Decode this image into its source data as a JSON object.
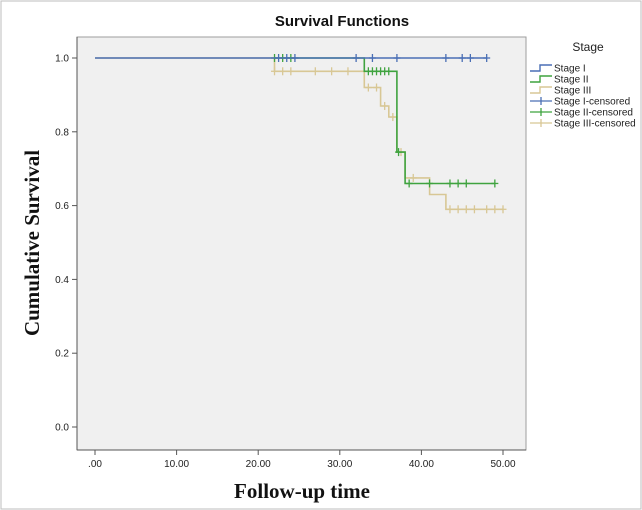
{
  "chart_data": {
    "type": "line",
    "title": "Survival Functions",
    "xlabel": "Follow-up time",
    "ylabel": "Cumulative Survival",
    "xlim": [
      0,
      50
    ],
    "ylim": [
      0,
      1.0
    ],
    "x_ticks": [
      ".00",
      "10.00",
      "20.00",
      "30.00",
      "40.00",
      "50.00"
    ],
    "y_ticks": [
      "0.0",
      "0.2",
      "0.4",
      "0.6",
      "0.8",
      "1.0"
    ],
    "grid": false,
    "legend": {
      "title": "Stage",
      "position": "right",
      "entries": [
        "Stage I",
        "Stage II",
        "Stage III",
        "Stage I-censored",
        "Stage II-censored",
        "Stage III-censored"
      ]
    },
    "series": [
      {
        "name": "Stage I",
        "color": "#4a6fb5",
        "steps": [
          [
            0,
            1.0
          ],
          [
            48,
            1.0
          ]
        ],
        "censored": [
          [
            22.5,
            1.0
          ],
          [
            23.5,
            1.0
          ],
          [
            24.5,
            1.0
          ],
          [
            32,
            1.0
          ],
          [
            34,
            1.0
          ],
          [
            37,
            1.0
          ],
          [
            43,
            1.0
          ],
          [
            45,
            1.0
          ],
          [
            46,
            1.0
          ],
          [
            48,
            1.0
          ]
        ]
      },
      {
        "name": "Stage II",
        "color": "#3fa33f",
        "steps": [
          [
            22,
            1.0
          ],
          [
            33,
            1.0
          ],
          [
            33,
            0.964
          ],
          [
            37,
            0.964
          ],
          [
            37,
            0.745
          ],
          [
            38,
            0.745
          ],
          [
            38,
            0.66
          ],
          [
            49,
            0.66
          ]
        ],
        "censored": [
          [
            22,
            1.0
          ],
          [
            23,
            1.0
          ],
          [
            24,
            1.0
          ],
          [
            33.5,
            0.964
          ],
          [
            34,
            0.964
          ],
          [
            34.5,
            0.964
          ],
          [
            35,
            0.964
          ],
          [
            35.5,
            0.964
          ],
          [
            36,
            0.964
          ],
          [
            37.2,
            0.745
          ],
          [
            38.5,
            0.66
          ],
          [
            41,
            0.66
          ],
          [
            43.5,
            0.66
          ],
          [
            44.5,
            0.66
          ],
          [
            45.5,
            0.66
          ],
          [
            49,
            0.66
          ]
        ]
      },
      {
        "name": "Stage III",
        "color": "#d8c795",
        "steps": [
          [
            0,
            1.0
          ],
          [
            22,
            1.0
          ],
          [
            22,
            0.964
          ],
          [
            33,
            0.964
          ],
          [
            33,
            0.92
          ],
          [
            35,
            0.92
          ],
          [
            35,
            0.87
          ],
          [
            36,
            0.87
          ],
          [
            36,
            0.84
          ],
          [
            37,
            0.84
          ],
          [
            37,
            0.745
          ],
          [
            38,
            0.745
          ],
          [
            38,
            0.675
          ],
          [
            41,
            0.675
          ],
          [
            41,
            0.63
          ],
          [
            43,
            0.63
          ],
          [
            43,
            0.59
          ],
          [
            50,
            0.59
          ]
        ],
        "censored": [
          [
            22,
            0.964
          ],
          [
            23,
            0.964
          ],
          [
            24,
            0.964
          ],
          [
            27,
            0.964
          ],
          [
            29,
            0.964
          ],
          [
            31,
            0.964
          ],
          [
            33.5,
            0.92
          ],
          [
            34.5,
            0.92
          ],
          [
            35.5,
            0.87
          ],
          [
            36.5,
            0.84
          ],
          [
            37.5,
            0.745
          ],
          [
            39,
            0.675
          ],
          [
            43.5,
            0.59
          ],
          [
            44.5,
            0.59
          ],
          [
            45.5,
            0.59
          ],
          [
            46.5,
            0.59
          ],
          [
            48,
            0.59
          ],
          [
            49,
            0.59
          ],
          [
            50,
            0.59
          ]
        ]
      }
    ]
  }
}
